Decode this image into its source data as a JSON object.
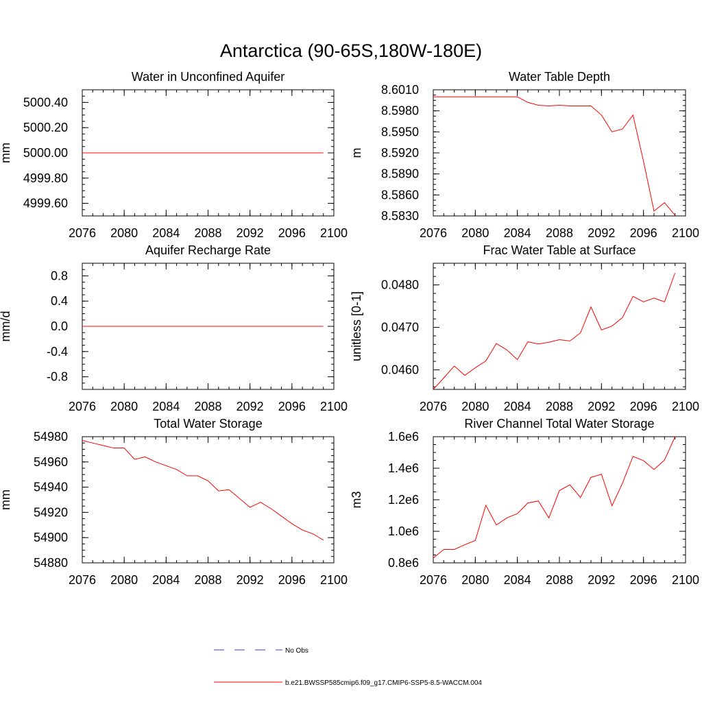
{
  "figure": {
    "title": "Antarctica (90-65S,180W-180E)",
    "colors": {
      "model": "#ff0000",
      "obs": "#3b3bd6",
      "axis": "#000000"
    }
  },
  "legend": {
    "obs_label": "No Obs",
    "model_label": "b.e21.BWSSP585cmip6.f09_g17.CMIP6-SSP5-8.5-WACCM.004"
  },
  "chart_data": [
    {
      "type": "line",
      "title": "Water in Unconfined Aquifer",
      "ylabel": "mm",
      "xlim": [
        2076,
        2100
      ],
      "xticks": [
        2076,
        2080,
        2084,
        2088,
        2092,
        2096,
        2100
      ],
      "xtick_labels": [
        "2076",
        "2080",
        "2084",
        "2088",
        "2092",
        "2096",
        "2100"
      ],
      "ylim": [
        4999.5,
        5000.5
      ],
      "yticks": [
        4999.6,
        4999.8,
        5000.0,
        5000.2,
        5000.4
      ],
      "ytick_labels": [
        "4999.60",
        "4999.80",
        "5000.00",
        "5000.20",
        "5000.40"
      ],
      "yminor": 0.05,
      "x": [
        2076,
        2077,
        2078,
        2079,
        2080,
        2081,
        2082,
        2083,
        2084,
        2085,
        2086,
        2087,
        2088,
        2089,
        2090,
        2091,
        2092,
        2093,
        2094,
        2095,
        2096,
        2097,
        2098,
        2099
      ],
      "series": [
        {
          "name": "b.e21.BWSSP585cmip6.f09_g17.CMIP6-SSP5-8.5-WACCM.004",
          "values": [
            5000,
            5000,
            5000,
            5000,
            5000,
            5000,
            5000,
            5000,
            5000,
            5000,
            5000,
            5000,
            5000,
            5000,
            5000,
            5000,
            5000,
            5000,
            5000,
            5000,
            5000,
            5000,
            5000,
            5000
          ]
        }
      ]
    },
    {
      "type": "line",
      "title": "Water Table Depth",
      "ylabel": "m",
      "xlim": [
        2076,
        2100
      ],
      "xticks": [
        2076,
        2080,
        2084,
        2088,
        2092,
        2096,
        2100
      ],
      "xtick_labels": [
        "2076",
        "2080",
        "2084",
        "2088",
        "2092",
        "2096",
        "2100"
      ],
      "ylim": [
        8.583,
        8.601
      ],
      "yticks": [
        8.583,
        8.586,
        8.589,
        8.592,
        8.595,
        8.598,
        8.601
      ],
      "ytick_labels": [
        "8.5830",
        "8.5860",
        "8.5890",
        "8.5920",
        "8.5950",
        "8.5980",
        "8.6010"
      ],
      "yminor": 0.00075,
      "x": [
        2076,
        2077,
        2078,
        2079,
        2080,
        2081,
        2082,
        2083,
        2084,
        2085,
        2086,
        2087,
        2088,
        2089,
        2090,
        2091,
        2092,
        2093,
        2094,
        2095,
        2096,
        2097,
        2098,
        2099
      ],
      "series": [
        {
          "name": "b.e21.BWSSP585cmip6.f09_g17.CMIP6-SSP5-8.5-WACCM.004",
          "values": [
            8.6,
            8.6,
            8.6,
            8.6,
            8.6,
            8.6,
            8.6,
            8.6,
            8.6,
            8.5992,
            8.5988,
            8.5987,
            8.5988,
            8.5987,
            8.5987,
            8.5987,
            8.5974,
            8.595,
            8.5954,
            8.5974,
            8.5908,
            8.5837,
            8.5849,
            8.5831
          ]
        }
      ]
    },
    {
      "type": "line",
      "title": "Aquifer Recharge Rate",
      "ylabel": "mm/d",
      "xlim": [
        2076,
        2100
      ],
      "xticks": [
        2076,
        2080,
        2084,
        2088,
        2092,
        2096,
        2100
      ],
      "xtick_labels": [
        "2076",
        "2080",
        "2084",
        "2088",
        "2092",
        "2096",
        "2100"
      ],
      "ylim": [
        -1.0,
        1.0
      ],
      "yticks": [
        -0.8,
        -0.4,
        0.0,
        0.4,
        0.8
      ],
      "ytick_labels": [
        "-0.8",
        "-0.4",
        "0.0",
        "0.4",
        "0.8"
      ],
      "yminor": 0.1,
      "x": [
        2076,
        2077,
        2078,
        2079,
        2080,
        2081,
        2082,
        2083,
        2084,
        2085,
        2086,
        2087,
        2088,
        2089,
        2090,
        2091,
        2092,
        2093,
        2094,
        2095,
        2096,
        2097,
        2098,
        2099
      ],
      "series": [
        {
          "name": "b.e21.BWSSP585cmip6.f09_g17.CMIP6-SSP5-8.5-WACCM.004",
          "values": [
            0,
            0,
            0,
            0,
            0,
            0,
            0,
            0,
            0,
            0,
            0,
            0,
            0,
            0,
            0,
            0,
            0,
            0,
            0,
            0,
            0,
            0,
            0,
            0
          ]
        }
      ]
    },
    {
      "type": "line",
      "title": "Frac Water Table at Surface",
      "ylabel": "unitless [0-1]",
      "xlim": [
        2076,
        2100
      ],
      "xticks": [
        2076,
        2080,
        2084,
        2088,
        2092,
        2096,
        2100
      ],
      "xtick_labels": [
        "2076",
        "2080",
        "2084",
        "2088",
        "2092",
        "2096",
        "2100"
      ],
      "ylim": [
        0.04554,
        0.04851
      ],
      "yticks": [
        0.046,
        0.047,
        0.048
      ],
      "ytick_labels": [
        "0.0460",
        "0.0470",
        "0.0480"
      ],
      "yminor": 0.0002,
      "x": [
        2076,
        2077,
        2078,
        2079,
        2080,
        2081,
        2082,
        2083,
        2084,
        2085,
        2086,
        2087,
        2088,
        2089,
        2090,
        2091,
        2092,
        2093,
        2094,
        2095,
        2096,
        2097,
        2098,
        2099
      ],
      "series": [
        {
          "name": "b.e21.BWSSP585cmip6.f09_g17.CMIP6-SSP5-8.5-WACCM.004",
          "values": [
            0.04554,
            0.04581,
            0.04609,
            0.04587,
            0.04605,
            0.04621,
            0.04662,
            0.04647,
            0.04624,
            0.04666,
            0.04661,
            0.04665,
            0.04671,
            0.04668,
            0.04687,
            0.04748,
            0.04694,
            0.04703,
            0.04723,
            0.04773,
            0.0476,
            0.04769,
            0.0476,
            0.04828
          ]
        }
      ]
    },
    {
      "type": "line",
      "title": "Total Water Storage",
      "ylabel": "mm",
      "xlim": [
        2076,
        2100
      ],
      "xticks": [
        2076,
        2080,
        2084,
        2088,
        2092,
        2096,
        2100
      ],
      "xtick_labels": [
        "2076",
        "2080",
        "2084",
        "2088",
        "2092",
        "2096",
        "2100"
      ],
      "ylim": [
        54880,
        54980
      ],
      "yticks": [
        54880,
        54900,
        54920,
        54940,
        54960,
        54980
      ],
      "ytick_labels": [
        "54880",
        "54900",
        "54920",
        "54940",
        "54960",
        "54980"
      ],
      "yminor": 5,
      "x": [
        2076,
        2077,
        2078,
        2079,
        2080,
        2081,
        2082,
        2083,
        2084,
        2085,
        2086,
        2087,
        2088,
        2089,
        2090,
        2091,
        2092,
        2093,
        2094,
        2095,
        2096,
        2097,
        2098,
        2099
      ],
      "series": [
        {
          "name": "b.e21.BWSSP585cmip6.f09_g17.CMIP6-SSP5-8.5-WACCM.004",
          "values": [
            54977,
            54975,
            54973,
            54971,
            54971,
            54962,
            54964,
            54960,
            54957,
            54954,
            54949,
            54949,
            54945,
            54937,
            54938,
            54931,
            54924,
            54928,
            54923,
            54917,
            54911,
            54906,
            54903,
            54898
          ]
        }
      ]
    },
    {
      "type": "line",
      "title": "River Channel Total Water Storage",
      "ylabel": "m3",
      "xlim": [
        2076,
        2100
      ],
      "xticks": [
        2076,
        2080,
        2084,
        2088,
        2092,
        2096,
        2100
      ],
      "xtick_labels": [
        "2076",
        "2080",
        "2084",
        "2088",
        "2092",
        "2096",
        "2100"
      ],
      "ylim": [
        800000,
        1600000
      ],
      "yticks": [
        800000,
        1000000,
        1200000,
        1400000,
        1600000
      ],
      "ytick_labels": [
        "0.8e6",
        "1.0e6",
        "1.2e6",
        "1.4e6",
        "1.6e6"
      ],
      "yminor": 50000,
      "x": [
        2076,
        2077,
        2078,
        2079,
        2080,
        2081,
        2082,
        2083,
        2084,
        2085,
        2086,
        2087,
        2088,
        2089,
        2090,
        2091,
        2092,
        2093,
        2094,
        2095,
        2096,
        2097,
        2098,
        2099
      ],
      "series": [
        {
          "name": "b.e21.BWSSP585cmip6.f09_g17.CMIP6-SSP5-8.5-WACCM.004",
          "values": [
            830000,
            885000,
            885000,
            915000,
            942000,
            1165000,
            1040000,
            1085000,
            1112000,
            1180000,
            1192000,
            1085000,
            1258000,
            1295000,
            1215000,
            1342000,
            1362000,
            1162000,
            1305000,
            1475000,
            1448000,
            1392000,
            1452000,
            1600000
          ]
        }
      ]
    }
  ]
}
